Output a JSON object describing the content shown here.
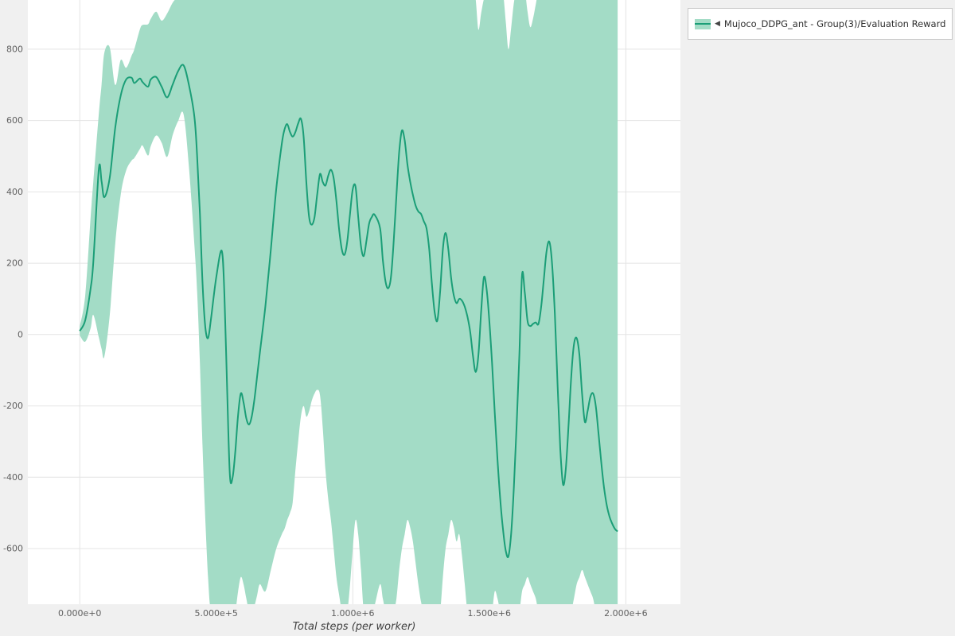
{
  "window": {
    "background": "#f0f0f0"
  },
  "legend": {
    "marker": "◀",
    "label": "Mujoco_DDPG_ant - Group(3)/Evaluation Reward",
    "line_color": "#1b9e77",
    "band_color": "#a3dcc6"
  },
  "chart_data": {
    "type": "line",
    "title": "",
    "xlabel": "Total steps (per worker)",
    "ylabel": "",
    "xlim": [
      -190000,
      2200000
    ],
    "ylim": [
      -756,
      938
    ],
    "x_ticks": [
      0,
      500000,
      1000000,
      1500000,
      2000000
    ],
    "x_tick_labels": [
      "0.000e+0",
      "5.000e+5",
      "1.000e+6",
      "1.500e+6",
      "2.000e+6"
    ],
    "y_ticks": [
      800,
      600,
      400,
      200,
      0,
      -200,
      -400,
      -600
    ],
    "y_tick_labels": [
      "800",
      "600",
      "400",
      "200",
      "0",
      "-200",
      "-400",
      "-600"
    ],
    "grid": true,
    "legend_position": "top-right",
    "series": [
      {
        "name": "Mujoco_DDPG_ant - Group(3)/Evaluation Reward",
        "color": "#1b9e77",
        "band_color": "#a3dcc6",
        "point_format": [
          "x_steps",
          "mean_reward",
          "band_lower",
          "band_upper"
        ],
        "points": [
          [
            0,
            10,
            -2,
            22
          ],
          [
            20000,
            40,
            -20,
            110
          ],
          [
            40000,
            130,
            18,
            330
          ],
          [
            50000,
            205,
            55,
            430
          ],
          [
            70000,
            465,
            -8,
            620
          ],
          [
            80000,
            430,
            -40,
            700
          ],
          [
            90000,
            385,
            -62,
            790
          ],
          [
            110000,
            440,
            55,
            805
          ],
          [
            130000,
            580,
            255,
            700
          ],
          [
            150000,
            670,
            392,
            770
          ],
          [
            170000,
            715,
            460,
            748
          ],
          [
            190000,
            720,
            488,
            782
          ],
          [
            200000,
            705,
            495,
            800
          ],
          [
            220000,
            718,
            520,
            855
          ],
          [
            230000,
            708,
            530,
            868
          ],
          [
            250000,
            695,
            502,
            870
          ],
          [
            260000,
            715,
            528,
            885
          ],
          [
            280000,
            722,
            558,
            905
          ],
          [
            300000,
            695,
            538,
            880
          ],
          [
            320000,
            665,
            498,
            900
          ],
          [
            340000,
            700,
            558,
            930
          ],
          [
            360000,
            738,
            598,
            948
          ],
          [
            380000,
            755,
            618,
            965
          ],
          [
            400000,
            700,
            470,
            965
          ],
          [
            420000,
            610,
            250,
            965
          ],
          [
            430000,
            500,
            120,
            965
          ],
          [
            440000,
            340,
            -80,
            965
          ],
          [
            450000,
            140,
            -320,
            965
          ],
          [
            460000,
            20,
            -520,
            965
          ],
          [
            470000,
            -10,
            -680,
            965
          ],
          [
            480000,
            40,
            -775,
            965
          ],
          [
            500000,
            160,
            -775,
            965
          ],
          [
            520000,
            235,
            -775,
            965
          ],
          [
            530000,
            110,
            -775,
            965
          ],
          [
            540000,
            -160,
            -775,
            965
          ],
          [
            550000,
            -395,
            -775,
            965
          ],
          [
            560000,
            -400,
            -775,
            965
          ],
          [
            570000,
            -325,
            -775,
            965
          ],
          [
            580000,
            -225,
            -720,
            965
          ],
          [
            590000,
            -165,
            -680,
            965
          ],
          [
            600000,
            -190,
            -700,
            965
          ],
          [
            610000,
            -235,
            -740,
            965
          ],
          [
            620000,
            -252,
            -775,
            965
          ],
          [
            630000,
            -230,
            -775,
            965
          ],
          [
            640000,
            -180,
            -760,
            965
          ],
          [
            650000,
            -115,
            -730,
            965
          ],
          [
            660000,
            -50,
            -700,
            965
          ],
          [
            680000,
            80,
            -720,
            965
          ],
          [
            700000,
            240,
            -660,
            965
          ],
          [
            720000,
            410,
            -600,
            965
          ],
          [
            740000,
            535,
            -560,
            965
          ],
          [
            750000,
            575,
            -545,
            965
          ],
          [
            760000,
            590,
            -520,
            965
          ],
          [
            770000,
            568,
            -500,
            965
          ],
          [
            780000,
            555,
            -470,
            965
          ],
          [
            790000,
            568,
            -380,
            965
          ],
          [
            800000,
            592,
            -300,
            965
          ],
          [
            810000,
            605,
            -230,
            965
          ],
          [
            820000,
            555,
            -200,
            965
          ],
          [
            830000,
            425,
            -230,
            965
          ],
          [
            840000,
            330,
            -215,
            965
          ],
          [
            850000,
            308,
            -185,
            965
          ],
          [
            860000,
            330,
            -165,
            965
          ],
          [
            870000,
            395,
            -155,
            965
          ],
          [
            880000,
            450,
            -170,
            965
          ],
          [
            890000,
            428,
            -260,
            965
          ],
          [
            900000,
            418,
            -380,
            965
          ],
          [
            910000,
            445,
            -460,
            965
          ],
          [
            920000,
            462,
            -520,
            965
          ],
          [
            930000,
            438,
            -600,
            965
          ],
          [
            940000,
            375,
            -680,
            965
          ],
          [
            950000,
            295,
            -730,
            965
          ],
          [
            960000,
            238,
            -775,
            965
          ],
          [
            970000,
            224,
            -775,
            965
          ],
          [
            980000,
            262,
            -775,
            965
          ],
          [
            990000,
            340,
            -700,
            965
          ],
          [
            1000000,
            408,
            -600,
            965
          ],
          [
            1010000,
            415,
            -520,
            965
          ],
          [
            1020000,
            330,
            -560,
            965
          ],
          [
            1030000,
            248,
            -660,
            965
          ],
          [
            1040000,
            220,
            -775,
            965
          ],
          [
            1050000,
            262,
            -775,
            965
          ],
          [
            1060000,
            312,
            -775,
            965
          ],
          [
            1070000,
            330,
            -775,
            965
          ],
          [
            1080000,
            336,
            -760,
            965
          ],
          [
            1100000,
            298,
            -700,
            965
          ],
          [
            1110000,
            210,
            -740,
            965
          ],
          [
            1120000,
            148,
            -775,
            965
          ],
          [
            1130000,
            130,
            -775,
            965
          ],
          [
            1140000,
            162,
            -775,
            965
          ],
          [
            1150000,
            262,
            -775,
            965
          ],
          [
            1160000,
            392,
            -740,
            965
          ],
          [
            1170000,
            512,
            -660,
            965
          ],
          [
            1180000,
            572,
            -600,
            965
          ],
          [
            1190000,
            545,
            -560,
            965
          ],
          [
            1200000,
            478,
            -520,
            965
          ],
          [
            1210000,
            430,
            -540,
            965
          ],
          [
            1220000,
            392,
            -580,
            965
          ],
          [
            1230000,
            362,
            -640,
            965
          ],
          [
            1240000,
            345,
            -700,
            965
          ],
          [
            1250000,
            338,
            -750,
            965
          ],
          [
            1260000,
            318,
            -775,
            965
          ],
          [
            1270000,
            298,
            -775,
            965
          ],
          [
            1280000,
            238,
            -775,
            965
          ],
          [
            1290000,
            140,
            -775,
            965
          ],
          [
            1300000,
            62,
            -775,
            965
          ],
          [
            1310000,
            40,
            -775,
            965
          ],
          [
            1320000,
            122,
            -775,
            965
          ],
          [
            1330000,
            240,
            -680,
            965
          ],
          [
            1340000,
            285,
            -600,
            965
          ],
          [
            1350000,
            238,
            -560,
            965
          ],
          [
            1360000,
            160,
            -520,
            965
          ],
          [
            1370000,
            110,
            -540,
            965
          ],
          [
            1380000,
            88,
            -580,
            965
          ],
          [
            1390000,
            100,
            -560,
            965
          ],
          [
            1400000,
            95,
            -620,
            965
          ],
          [
            1410000,
            78,
            -700,
            965
          ],
          [
            1420000,
            50,
            -775,
            965
          ],
          [
            1430000,
            8,
            -775,
            965
          ],
          [
            1440000,
            -58,
            -775,
            965
          ],
          [
            1450000,
            -105,
            -775,
            940
          ],
          [
            1460000,
            -58,
            -775,
            855
          ],
          [
            1470000,
            62,
            -775,
            900
          ],
          [
            1480000,
            160,
            -775,
            940
          ],
          [
            1490000,
            128,
            -775,
            958
          ],
          [
            1500000,
            40,
            -775,
            965
          ],
          [
            1510000,
            -80,
            -775,
            965
          ],
          [
            1520000,
            -220,
            -720,
            965
          ],
          [
            1530000,
            -350,
            -740,
            965
          ],
          [
            1540000,
            -462,
            -775,
            965
          ],
          [
            1550000,
            -545,
            -775,
            960
          ],
          [
            1560000,
            -605,
            -775,
            880
          ],
          [
            1570000,
            -622,
            -775,
            800
          ],
          [
            1580000,
            -558,
            -775,
            860
          ],
          [
            1590000,
            -428,
            -775,
            930
          ],
          [
            1600000,
            -258,
            -775,
            965
          ],
          [
            1610000,
            -58,
            -775,
            965
          ],
          [
            1620000,
            168,
            -720,
            965
          ],
          [
            1630000,
            118,
            -700,
            965
          ],
          [
            1640000,
            38,
            -680,
            905
          ],
          [
            1650000,
            24,
            -700,
            862
          ],
          [
            1660000,
            30,
            -720,
            885
          ],
          [
            1670000,
            34,
            -740,
            925
          ],
          [
            1680000,
            30,
            -775,
            965
          ],
          [
            1690000,
            78,
            -775,
            965
          ],
          [
            1700000,
            158,
            -775,
            965
          ],
          [
            1710000,
            235,
            -775,
            965
          ],
          [
            1720000,
            260,
            -775,
            965
          ],
          [
            1730000,
            198,
            -775,
            965
          ],
          [
            1740000,
            58,
            -775,
            965
          ],
          [
            1750000,
            -140,
            -775,
            965
          ],
          [
            1760000,
            -320,
            -775,
            965
          ],
          [
            1770000,
            -420,
            -775,
            965
          ],
          [
            1780000,
            -378,
            -775,
            965
          ],
          [
            1790000,
            -258,
            -775,
            965
          ],
          [
            1800000,
            -118,
            -775,
            965
          ],
          [
            1810000,
            -28,
            -740,
            965
          ],
          [
            1820000,
            -10,
            -700,
            965
          ],
          [
            1830000,
            -58,
            -680,
            965
          ],
          [
            1840000,
            -168,
            -660,
            965
          ],
          [
            1850000,
            -245,
            -680,
            965
          ],
          [
            1860000,
            -215,
            -700,
            965
          ],
          [
            1870000,
            -175,
            -720,
            965
          ],
          [
            1880000,
            -165,
            -740,
            965
          ],
          [
            1890000,
            -200,
            -775,
            965
          ],
          [
            1900000,
            -278,
            -775,
            965
          ],
          [
            1910000,
            -358,
            -775,
            965
          ],
          [
            1920000,
            -428,
            -775,
            965
          ],
          [
            1930000,
            -478,
            -775,
            965
          ],
          [
            1940000,
            -510,
            -775,
            965
          ],
          [
            1950000,
            -530,
            -775,
            965
          ],
          [
            1960000,
            -545,
            -775,
            965
          ],
          [
            1970000,
            -552,
            -775,
            965
          ]
        ]
      }
    ]
  }
}
